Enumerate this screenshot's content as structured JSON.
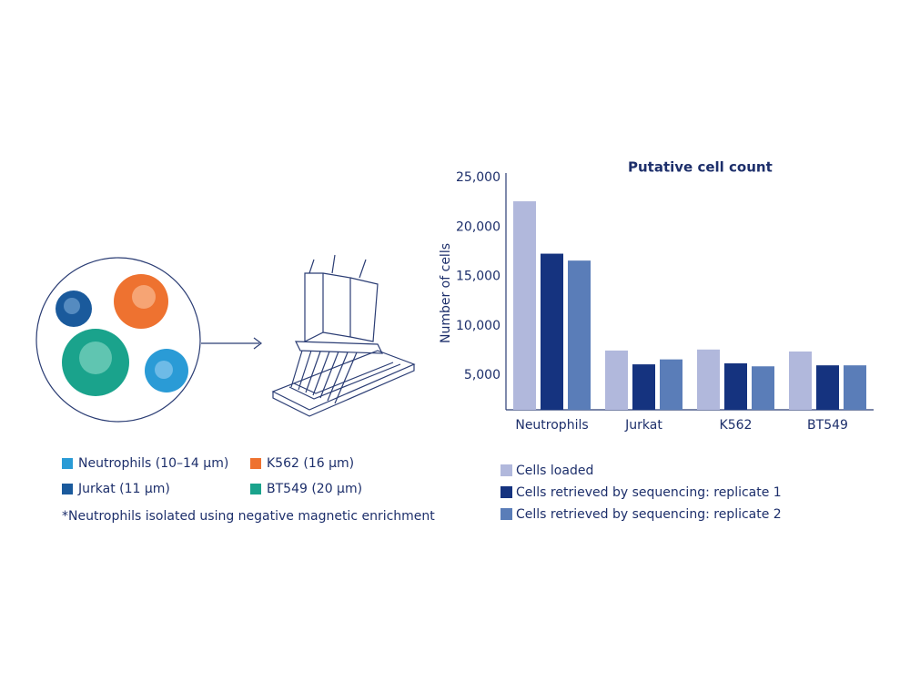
{
  "chart_data": {
    "type": "bar",
    "title": "Putative cell count",
    "y_label": "Number of cells",
    "categories": [
      "Neutrophils",
      "Jurkat",
      "K562",
      "BT549"
    ],
    "series": [
      {
        "name": "Cells loaded",
        "color": "#b1b8dc",
        "values": [
          22600,
          7500,
          7600,
          7400
        ]
      },
      {
        "name": "Cells retrieved by sequencing: replicate 1",
        "color": "#15337f",
        "values": [
          17300,
          6100,
          6200,
          6000
        ]
      },
      {
        "name": "Cells retrieved by sequencing: replicate 2",
        "color": "#5a7db8",
        "values": [
          16600,
          6600,
          5900,
          6000
        ]
      }
    ],
    "ylim": [
      1500,
      25000
    ],
    "yticks": [
      {
        "value": 5000,
        "label": "5,000"
      },
      {
        "value": 10000,
        "label": "10,000"
      },
      {
        "value": 15000,
        "label": "15,000"
      },
      {
        "value": 20000,
        "label": "20,000"
      },
      {
        "value": 25000,
        "label": "25,000"
      }
    ],
    "grid": false
  },
  "cell_legend": [
    {
      "label": "Neutrophils (10–14 µm)",
      "color": "#2a9bd6"
    },
    {
      "label": "Jurkat (11 µm)",
      "color": "#1a5a9c"
    },
    {
      "label": "K562 (16 µm)",
      "color": "#ee7230"
    },
    {
      "label": "BT549 (20 µm)",
      "color": "#1aa38c"
    }
  ],
  "footnote": "*Neutrophils isolated using negative magnetic enrichment"
}
